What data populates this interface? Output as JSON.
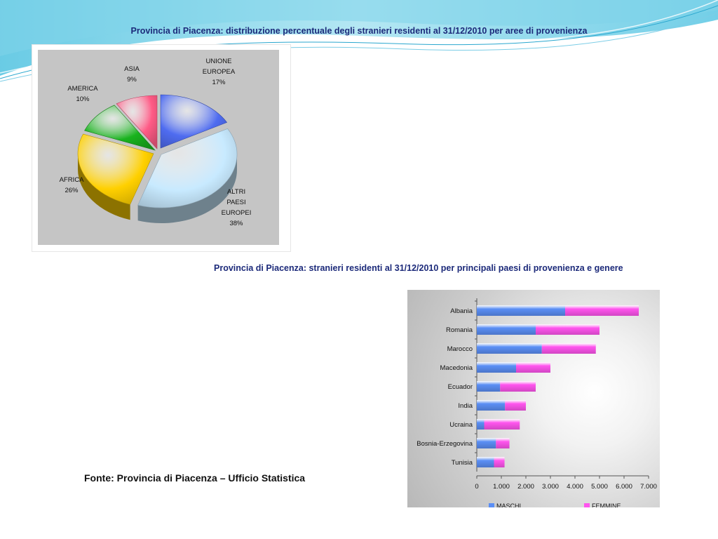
{
  "slide": {
    "title_top": "Provincia di Piacenza: distribuzione percentuale degli stranieri residenti al 31/12/2010 per aree di provenienza",
    "title_middle": "Provincia di Piacenza: stranieri residenti al 31/12/2010 per principali paesi di provenienza e genere",
    "source": "Fonte: Provincia di Piacenza – Ufficio Statistica"
  },
  "chart_data": [
    {
      "type": "pie",
      "title": "",
      "slices": [
        {
          "label_lines": [
            "UNIONE",
            "EUROPEA"
          ],
          "percent_label": "17%",
          "value": 17,
          "color": "#4f6cf0"
        },
        {
          "label_lines": [
            "ALTRI",
            "PAESI",
            "EUROPEI"
          ],
          "percent_label": "38%",
          "value": 38,
          "color": "#c8eaff"
        },
        {
          "label_lines": [
            "AFRICA"
          ],
          "percent_label": "26%",
          "value": 26,
          "color": "#ffd000"
        },
        {
          "label_lines": [
            "AMERICA"
          ],
          "percent_label": "10%",
          "value": 10,
          "color": "#19b31e"
        },
        {
          "label_lines": [
            "ASIA"
          ],
          "percent_label": "9%",
          "value": 9,
          "color": "#ff5b86"
        }
      ]
    },
    {
      "type": "bar",
      "orientation": "horizontal",
      "stacked": true,
      "title": "",
      "categories": [
        "Albania",
        "Romania",
        "Marocco",
        "Macedonia",
        "Ecuador",
        "India",
        "Ucraina",
        "Bosnia-Erzegovina",
        "Tunisia"
      ],
      "series": [
        {
          "name": "MASCHI",
          "color": "#5b8ff5",
          "values": [
            3600,
            2400,
            2650,
            1600,
            950,
            1150,
            300,
            780,
            700
          ]
        },
        {
          "name": "FEMMINE",
          "color": "#ff55ee",
          "values": [
            3000,
            2600,
            2200,
            1400,
            1450,
            850,
            1450,
            550,
            430
          ]
        }
      ],
      "xlim": [
        0,
        7000
      ],
      "xticks": [
        "0",
        "1.000",
        "2.000",
        "3.000",
        "4.000",
        "5.000",
        "6.000",
        "7.000"
      ],
      "legend_position": "bottom"
    }
  ]
}
